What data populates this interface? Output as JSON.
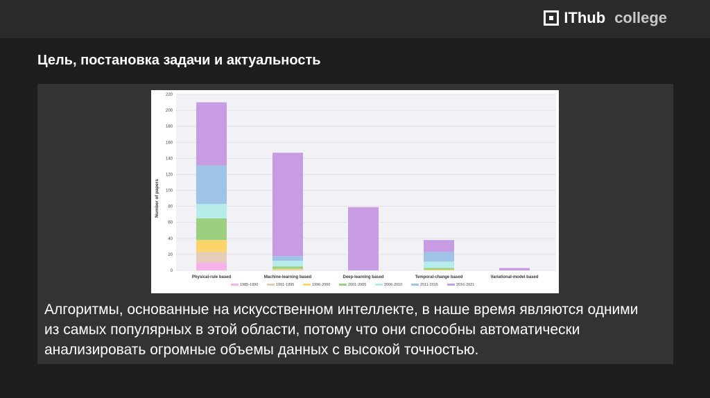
{
  "header": {
    "logo_main": "IThub",
    "logo_sub": "college",
    "logo_icon": "square-logo-icon"
  },
  "slide": {
    "title": "Цель, постановка задачи и актуальность",
    "body": "Алгоритмы, основанные на искусственном интеллекте, в наше время являются одними из самых популярных в этой области, потому что они способны автоматически анализировать огромные объемы данных с высокой точностью."
  },
  "chart_data": {
    "type": "bar",
    "stacked": true,
    "categories": [
      "Physical-rule based",
      "Machine-learning based",
      "Deep-learning based",
      "Temporal-change based",
      "Variational-model based"
    ],
    "ylabel": "Number of papers",
    "ylim": [
      0,
      220
    ],
    "yticks": [
      0,
      20,
      40,
      60,
      80,
      100,
      120,
      140,
      160,
      180,
      200,
      220
    ],
    "grid": true,
    "legend_position": "bottom",
    "series": [
      {
        "name": "1985-1990",
        "color": "#f6b3e8",
        "values": [
          10,
          0,
          0,
          0,
          0
        ]
      },
      {
        "name": "1991-1995",
        "color": "#e5cdb7",
        "values": [
          13,
          1,
          0,
          0,
          0
        ]
      },
      {
        "name": "1996-2000",
        "color": "#fcd56a",
        "values": [
          15,
          1,
          0,
          1,
          0
        ]
      },
      {
        "name": "2001-2005",
        "color": "#9ccf7f",
        "values": [
          27,
          3,
          0,
          2,
          0
        ]
      },
      {
        "name": "2006-2010",
        "color": "#b6ecea",
        "values": [
          18,
          7,
          0,
          8,
          0
        ]
      },
      {
        "name": "2011-2015",
        "color": "#9fc3e7",
        "values": [
          48,
          6,
          0,
          12,
          0
        ]
      },
      {
        "name": "2016-2021",
        "color": "#c79ce3",
        "values": [
          79,
          129,
          79,
          15,
          3
        ]
      }
    ]
  }
}
